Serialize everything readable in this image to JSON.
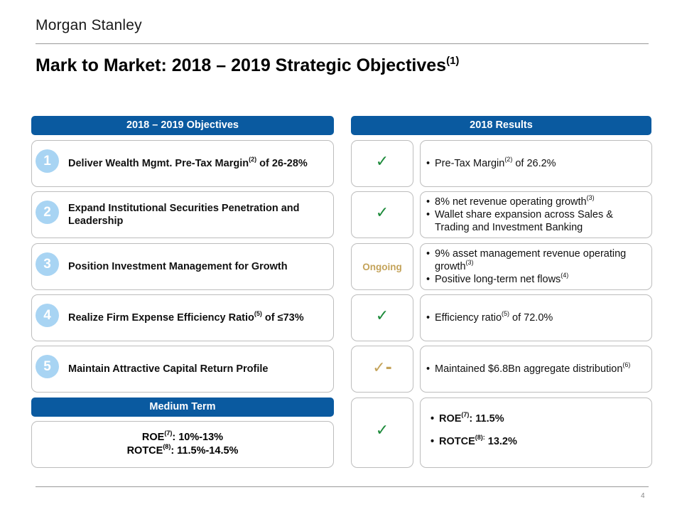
{
  "brand": {
    "logo": "Morgan Stanley"
  },
  "page": {
    "title": "Mark to Market: 2018 – 2019 Strategic Objectives",
    "title_note": "(1)",
    "page_number": "4"
  },
  "headers": {
    "objectives": "2018 – 2019 Objectives",
    "results": "2018 Results",
    "medium_term": "Medium Term"
  },
  "objectives": [
    {
      "num": "1",
      "parts": [
        "Deliver Wealth Mgmt. Pre-Tax Margin",
        "(2)",
        " of 26-28%"
      ]
    },
    {
      "num": "2",
      "parts": [
        "Expand Institutional  Securities Penetration and Leadership",
        "",
        ""
      ]
    },
    {
      "num": "3",
      "parts": [
        "Position Investment Management for Growth",
        "",
        ""
      ]
    },
    {
      "num": "4",
      "parts": [
        "Realize Firm Expense Efficiency Ratio",
        "(5)",
        " of ≤73%"
      ]
    },
    {
      "num": "5",
      "parts": [
        "Maintain Attractive Capital Return Profile",
        "",
        ""
      ]
    }
  ],
  "status": [
    {
      "type": "check",
      "symbol": "✓"
    },
    {
      "type": "check",
      "symbol": "✓"
    },
    {
      "type": "text",
      "label": "Ongoing"
    },
    {
      "type": "check",
      "symbol": "✓"
    },
    {
      "type": "partial",
      "symbol": "✓-"
    },
    {
      "type": "check",
      "symbol": "✓"
    }
  ],
  "results": [
    [
      [
        "Pre-Tax Margin",
        "(2)",
        " of 26.2%"
      ]
    ],
    [
      [
        "8% net revenue operating growth",
        "(3)",
        ""
      ],
      [
        "Wallet share expansion across Sales & Trading and Investment  Banking",
        "",
        ""
      ]
    ],
    [
      [
        "9% asset management revenue operating growth",
        "(3)",
        ""
      ],
      [
        "Positive long-term net flows",
        "(4)",
        ""
      ]
    ],
    [
      [
        "Efficiency ratio",
        "(5)",
        " of 72.0%"
      ]
    ],
    [
      [
        "Maintained $6.8Bn aggregate distribution",
        "(6)",
        ""
      ]
    ],
    [
      [
        "ROE",
        "(7)",
        ": 11.5%"
      ],
      [
        "ROTCE",
        "(8):",
        " 13.2%"
      ]
    ]
  ],
  "medium_term": {
    "roe_label": "ROE",
    "roe_note": "(7)",
    "roe_value": ": 10%-13%",
    "rotce_label": "ROTCE",
    "rotce_note": "(8)",
    "rotce_value": ": 11.5%-14.5%"
  },
  "colors": {
    "header_blue": "#0a5aa0",
    "number_circle": "#a8d4f3",
    "check_green": "#1c8a3a",
    "ongoing_gold": "#c4a35a"
  }
}
